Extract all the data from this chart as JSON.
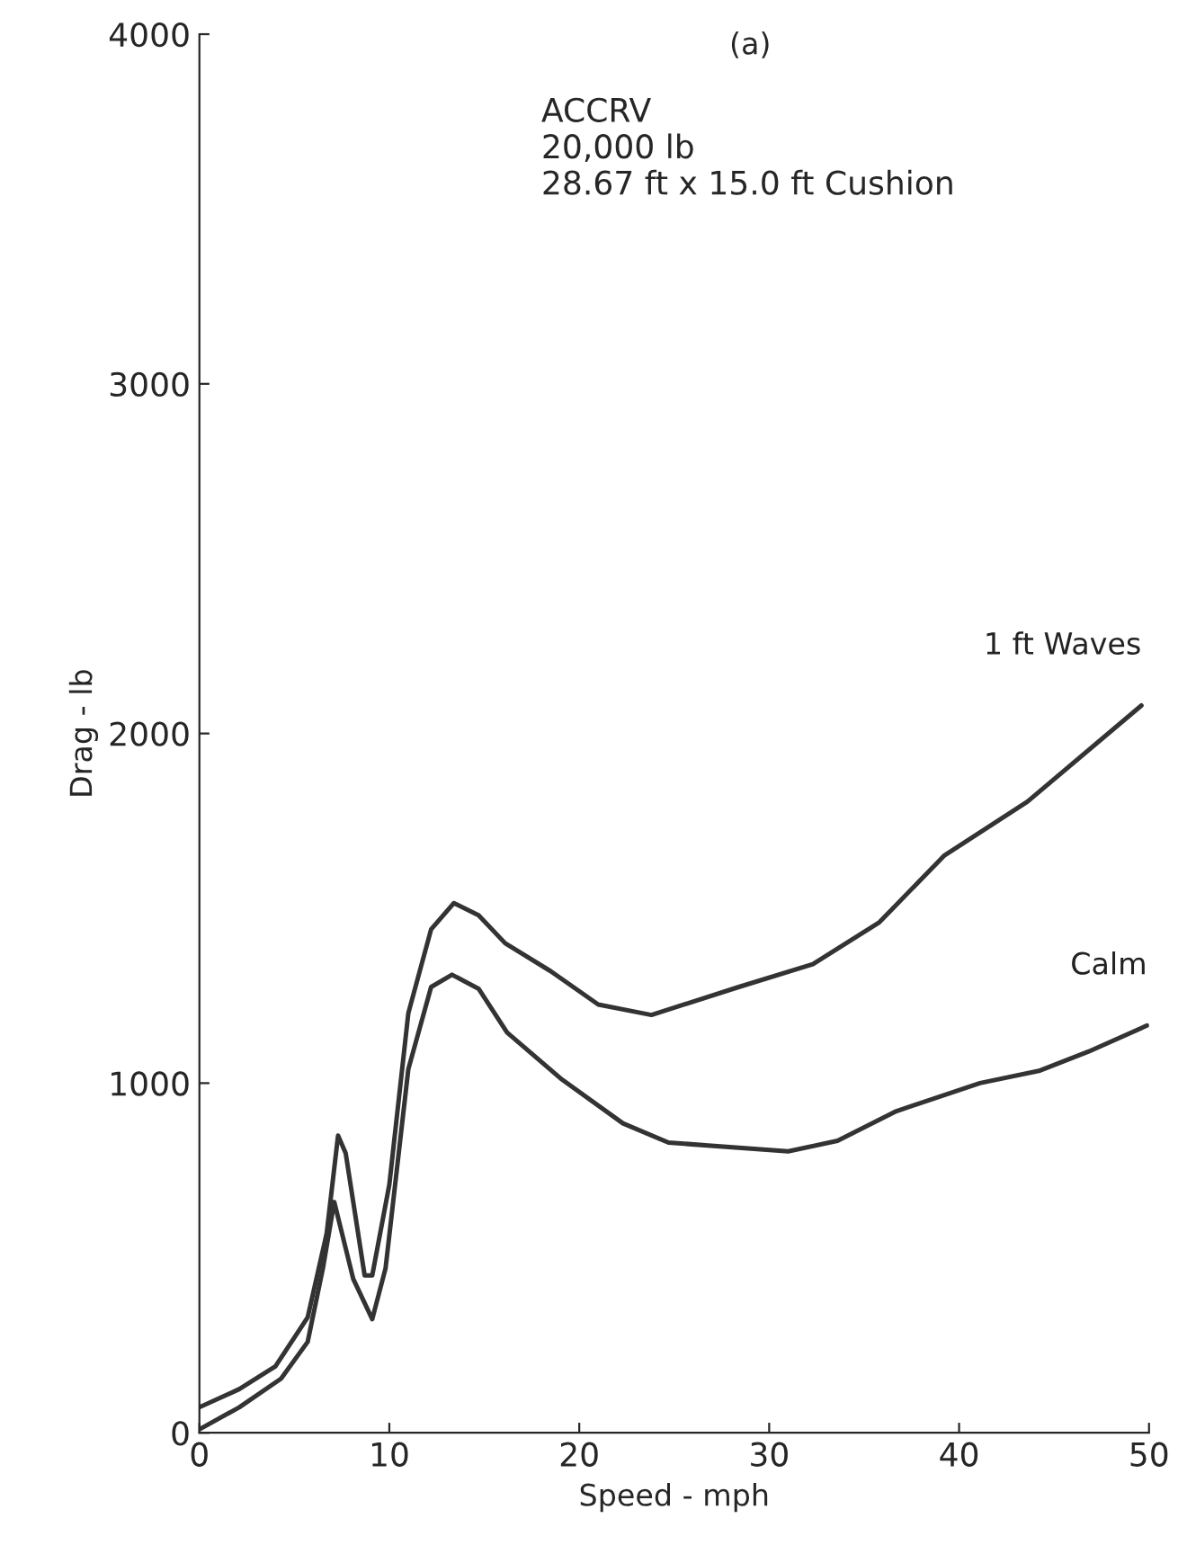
{
  "chart_data": {
    "type": "line",
    "title": "(a)",
    "annotations": [
      "ACCRV",
      "20,000 lb",
      "28.67 ft x 15.0 ft Cushion"
    ],
    "xlabel": "Speed - mph",
    "ylabel": "Drag - lb",
    "xlim": [
      0,
      50
    ],
    "xticks": [
      0,
      10,
      20,
      30,
      40,
      50
    ],
    "ylim": [
      0,
      4000
    ],
    "yticks": [
      0,
      1000,
      2000,
      3000,
      4000
    ],
    "grid": false,
    "legend": false,
    "series": [
      {
        "name": "1 ft Waves",
        "color": "#333333",
        "x": [
          0,
          2.1,
          4,
          5.7,
          6.7,
          7.3,
          7.7,
          8.7,
          9.1,
          10,
          11.0,
          12.2,
          13.4,
          14.7,
          16.1,
          18.5,
          21,
          23.8,
          28.4,
          32.3,
          35.8,
          39.2,
          43.6,
          49.6
        ],
        "values": [
          73,
          125,
          190,
          330,
          570,
          850,
          800,
          450,
          450,
          710,
          1200,
          1440,
          1515,
          1480,
          1400,
          1320,
          1225,
          1195,
          1275,
          1340,
          1460,
          1650,
          1805,
          2080
        ]
      },
      {
        "name": "Calm",
        "color": "#333333",
        "x": [
          0,
          2.1,
          4.3,
          5.7,
          6.5,
          7.1,
          8.1,
          9.1,
          9.8,
          11.0,
          12.2,
          13.3,
          14.7,
          16.2,
          19.1,
          22.3,
          24.7,
          31,
          33.6,
          36.7,
          41.1,
          44.2,
          46.8,
          49.9
        ],
        "values": [
          10,
          73,
          155,
          260,
          470,
          660,
          440,
          325,
          470,
          1040,
          1275,
          1310,
          1270,
          1145,
          1010,
          885,
          830,
          805,
          835,
          920,
          1000,
          1035,
          1090,
          1165
        ]
      }
    ]
  }
}
